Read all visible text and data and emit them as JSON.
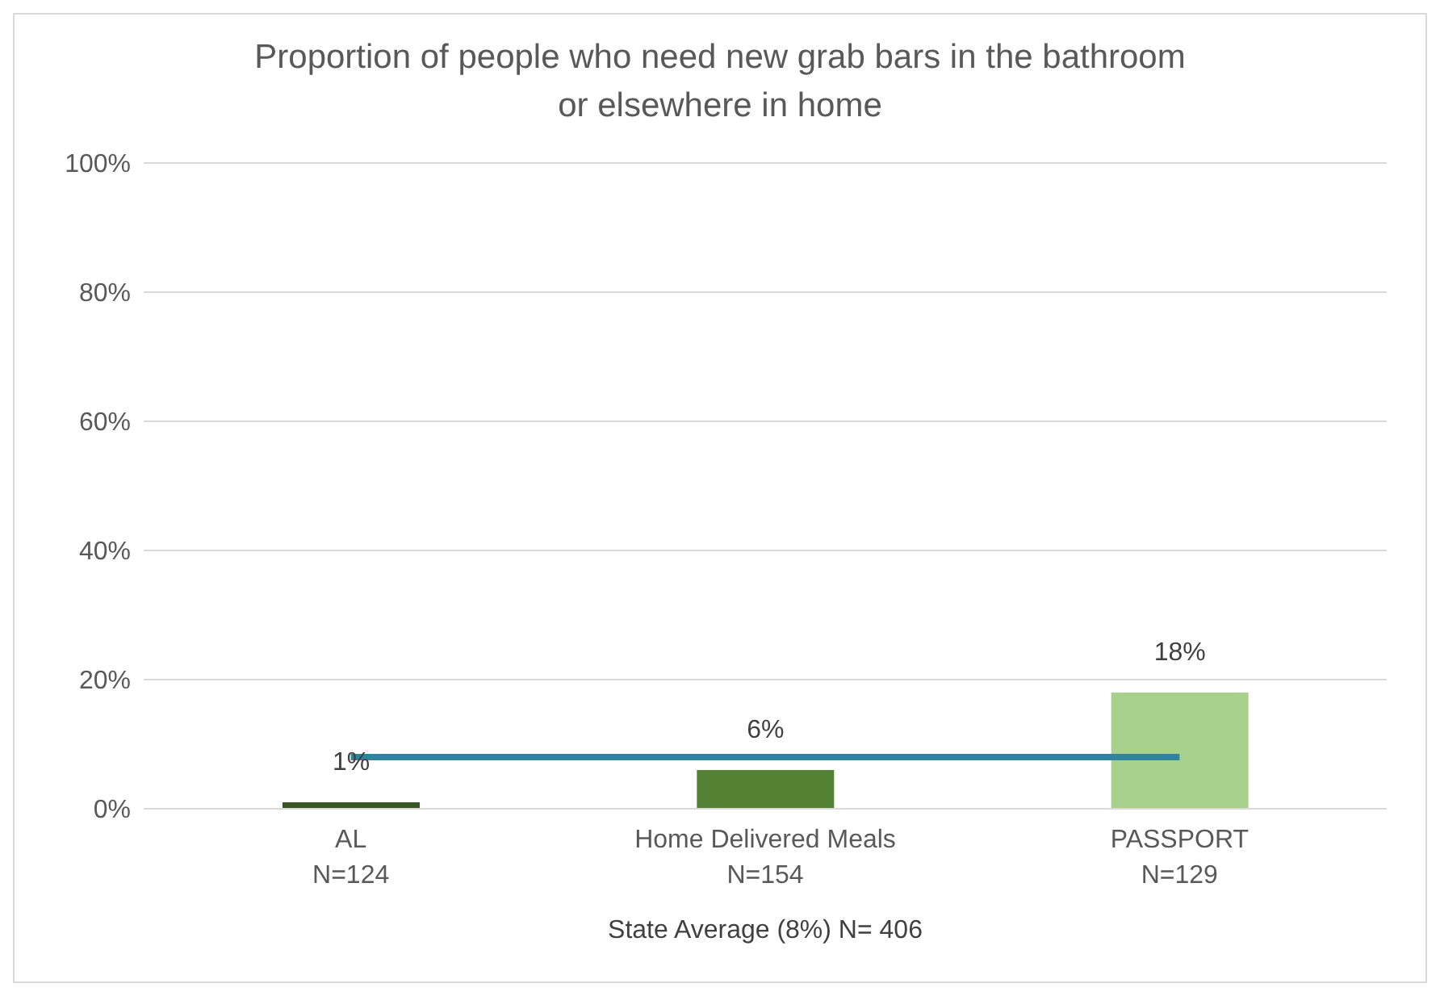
{
  "chart_data": {
    "type": "bar",
    "title": "Proportion of people who need new grab bars in the bathroom or elsewhere in home",
    "xlabel": "State Average (8%) N= 406",
    "categories": [
      "AL\nN=124",
      "Home Delivered Meals\nN=154",
      "PASSPORT\nN=129"
    ],
    "series": [
      {
        "colors": [
          "#375623",
          "#548235",
          "#a9d18e"
        ],
        "values": [
          1,
          6,
          18
        ],
        "value_labels": [
          "1%",
          "6%",
          "18%"
        ]
      },
      {
        "type": "line",
        "color": "#31849b",
        "values": [
          8,
          8,
          8
        ]
      }
    ],
    "ylim": [
      0,
      100
    ],
    "yticks": [
      {
        "value": 0,
        "label": "0%"
      },
      {
        "value": 20,
        "label": "20%"
      },
      {
        "value": 40,
        "label": "40%"
      },
      {
        "value": 60,
        "label": "60%"
      },
      {
        "value": 80,
        "label": "80%"
      },
      {
        "value": 100,
        "label": "100%"
      }
    ],
    "grid": "y",
    "legend": false,
    "marker": "none"
  }
}
